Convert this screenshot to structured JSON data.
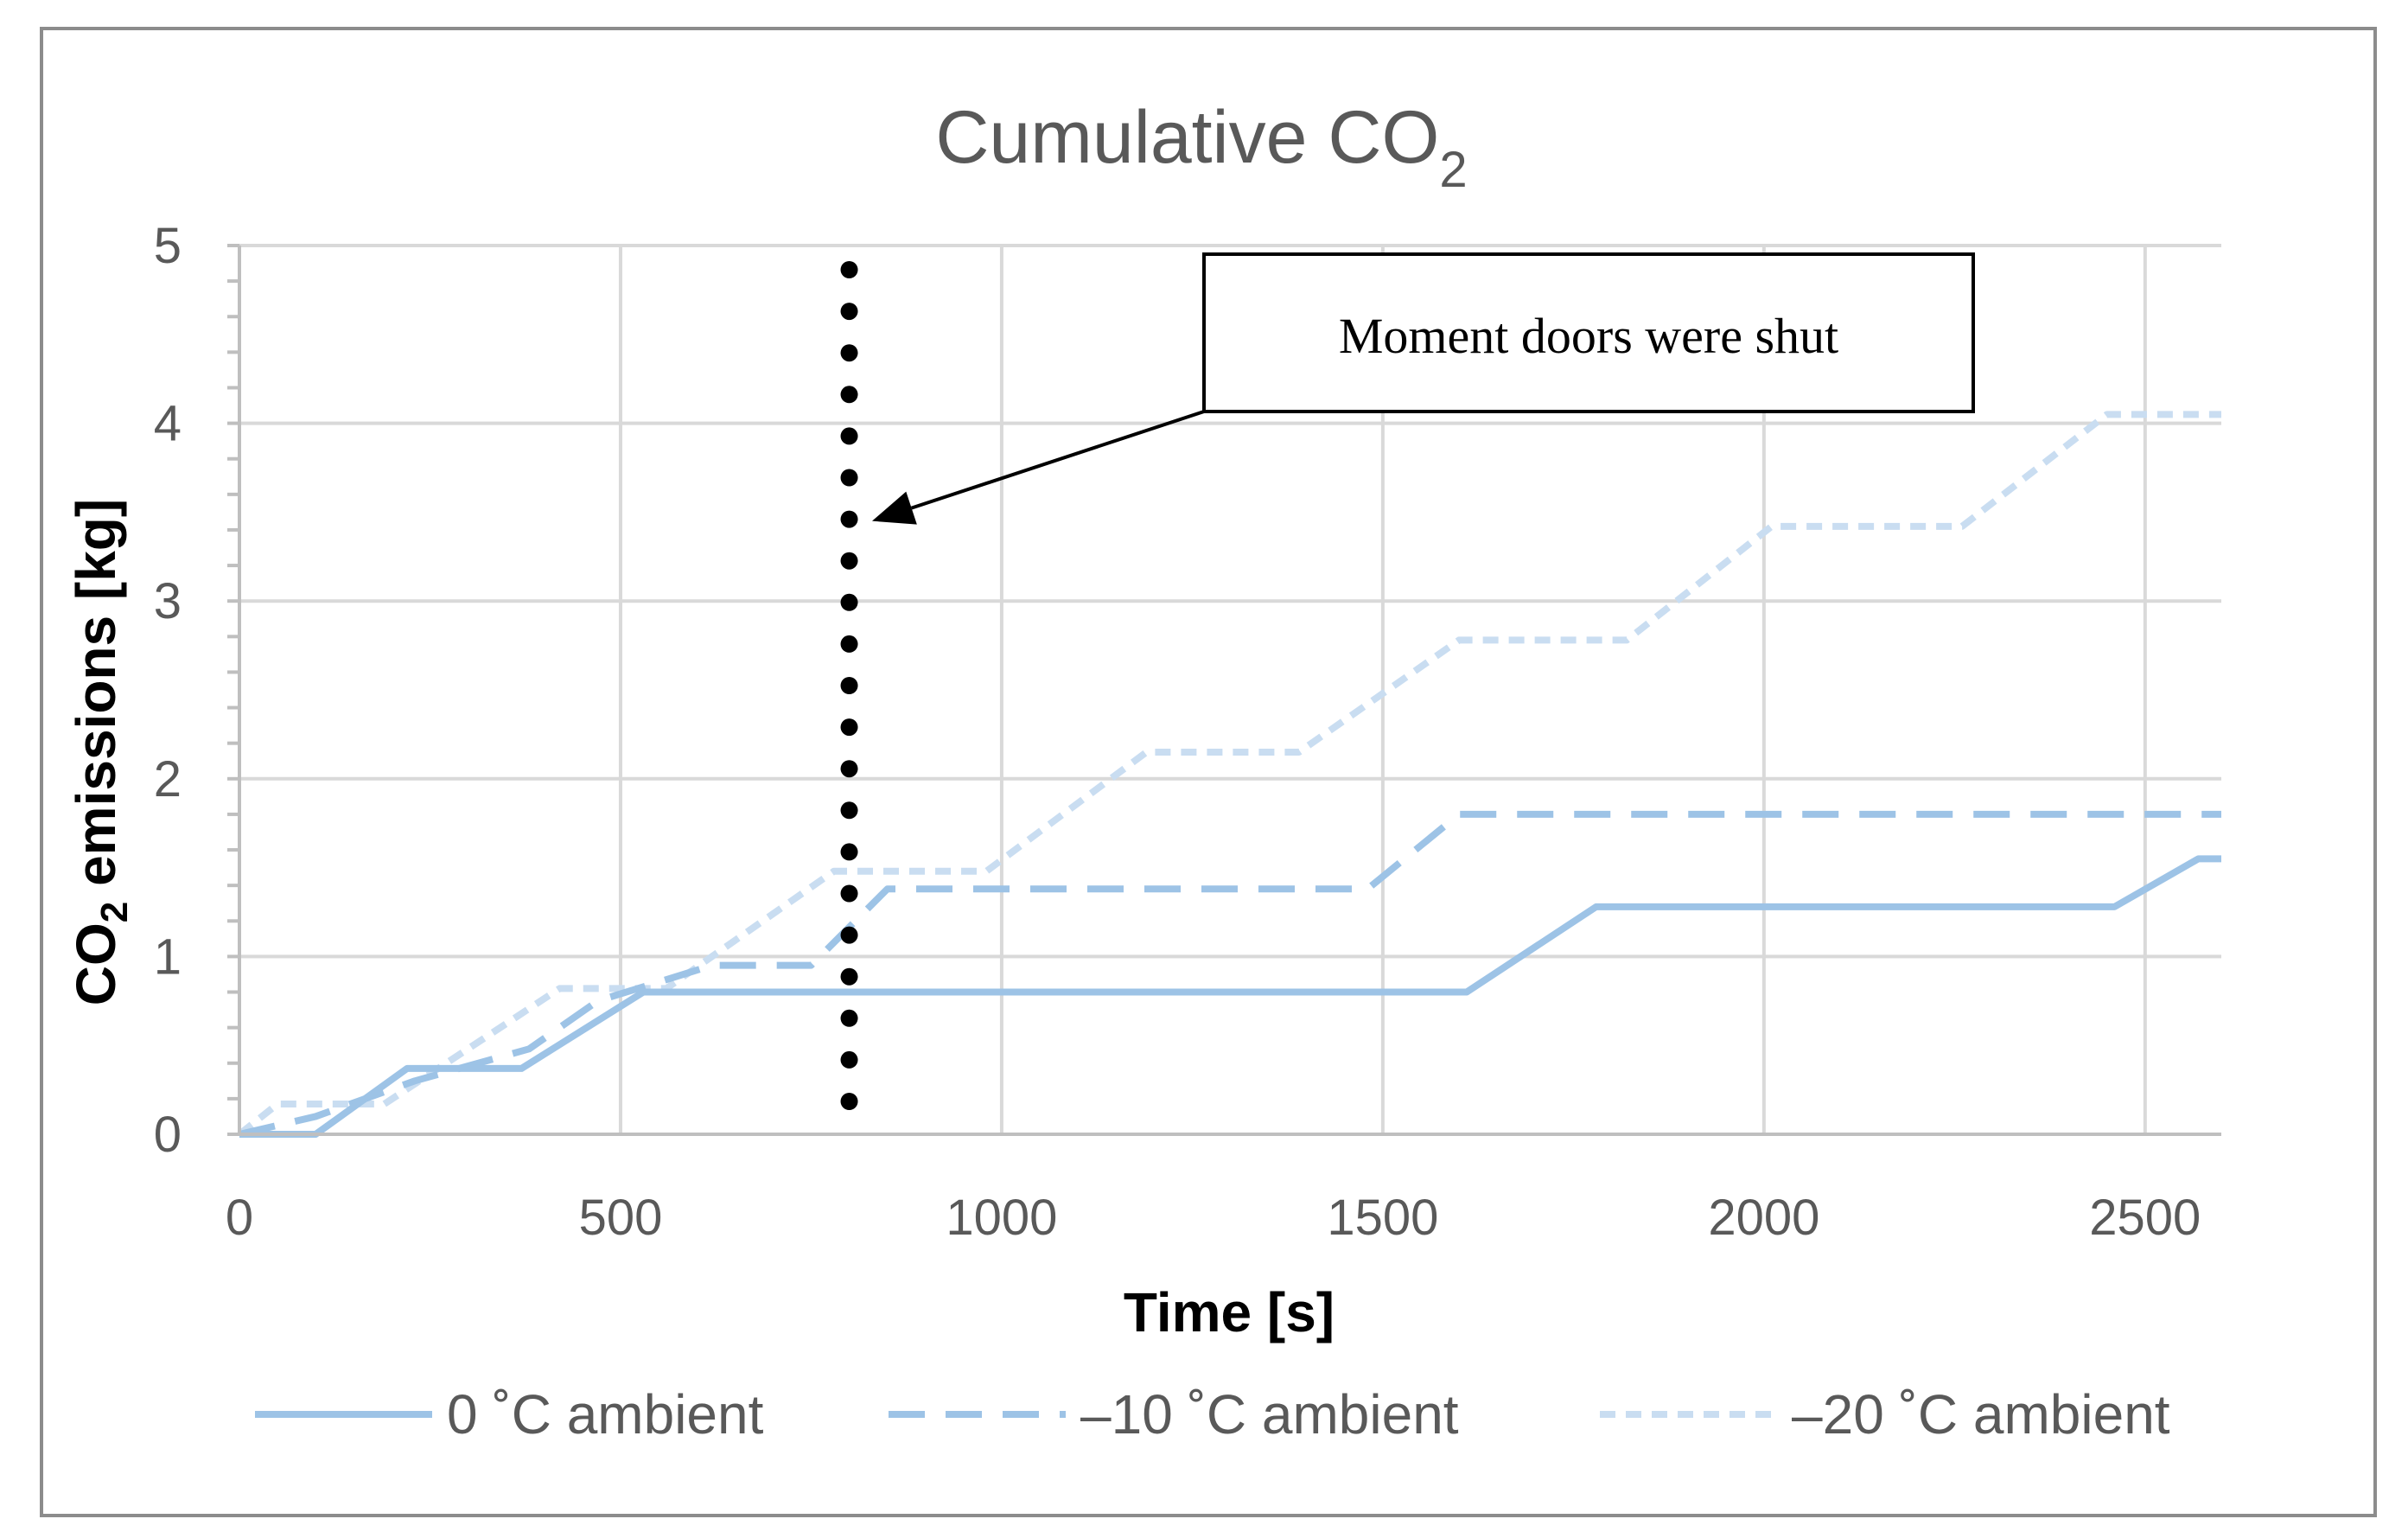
{
  "chart_data": {
    "type": "line",
    "title": "Cumulative CO",
    "title_subscript": "2",
    "xlabel": "Time [s]",
    "ylabel_prefix": "CO",
    "ylabel_subscript": "2",
    "ylabel_suffix": " emissions [kg]",
    "xlim": [
      0,
      2600
    ],
    "ylim": [
      0,
      5
    ],
    "x_ticks": [
      0,
      500,
      1000,
      1500,
      2000,
      2500
    ],
    "y_ticks": [
      0,
      1,
      2,
      3,
      4,
      5
    ],
    "grid": true,
    "legend_position": "bottom",
    "series": [
      {
        "name": "0 ˚C ambient",
        "style": "solid",
        "color": "#9DC3E6",
        "x": [
          0,
          100,
          220,
          370,
          530,
          1610,
          1780,
          2460,
          2570,
          2600
        ],
        "y": [
          0,
          0,
          0.37,
          0.37,
          0.8,
          0.8,
          1.28,
          1.28,
          1.55,
          1.55
        ]
      },
      {
        "name": "–10 ˚C ambient",
        "style": "dashed",
        "color": "#9DC3E6",
        "x": [
          0,
          100,
          230,
          380,
          470,
          620,
          750,
          850,
          1480,
          1600,
          2600
        ],
        "y": [
          0,
          0.1,
          0.3,
          0.48,
          0.75,
          0.95,
          0.95,
          1.38,
          1.38,
          1.8,
          1.8
        ]
      },
      {
        "name": "–20 ˚C ambient",
        "style": "dotted",
        "color": "#C9DDF1",
        "x": [
          0,
          50,
          190,
          420,
          560,
          780,
          980,
          1190,
          1390,
          1600,
          1820,
          2010,
          2260,
          2450,
          2600
        ],
        "y": [
          0,
          0.17,
          0.17,
          0.82,
          0.82,
          1.48,
          1.48,
          2.15,
          2.15,
          2.78,
          2.78,
          3.42,
          3.42,
          4.05,
          4.05
        ]
      }
    ],
    "annotation": {
      "text": "Moment doors were shut",
      "vline_x": 800,
      "arrow_target": [
        830,
        3.45
      ]
    }
  }
}
